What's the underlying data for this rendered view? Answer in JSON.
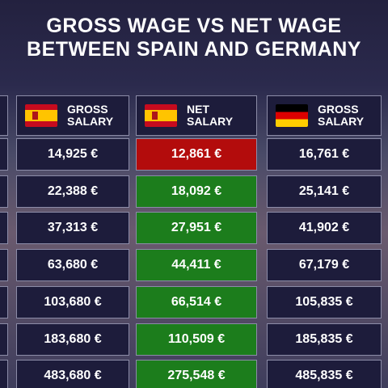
{
  "title": {
    "line1": "GROSS WAGE VS NET WAGE",
    "line2": "BETWEEN SPAIN AND GERMANY"
  },
  "table": {
    "columns": [
      "GROSS SALARY",
      "NET SALARY",
      "GROSS SALARY"
    ],
    "rows": [
      [
        "14,925 €",
        "12,861 €",
        "16,761 €"
      ],
      [
        "22,388 €",
        "18,092 €",
        "25,141 €"
      ],
      [
        "37,313 €",
        "27,951 €",
        "41,902 €"
      ],
      [
        "63,680 €",
        "44,411 €",
        "67,179 €"
      ],
      [
        "103,680 €",
        "66,514 €",
        "105,835 €"
      ],
      [
        "183,680 €",
        "110,509 €",
        "185,835 €"
      ],
      [
        "483,680 €",
        "275,548 €",
        "485,835 €"
      ]
    ]
  }
}
